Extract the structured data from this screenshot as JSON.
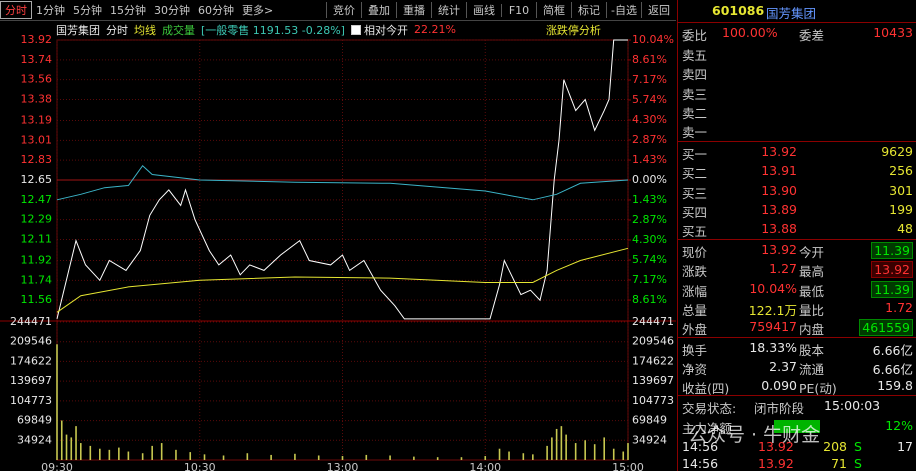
{
  "toolbar": {
    "tabs": [
      "分时",
      "1分钟",
      "5分钟",
      "15分钟",
      "30分钟",
      "60分钟",
      "更多>"
    ],
    "buttons": [
      "竞价",
      "叠加",
      "重播",
      "统计",
      "画线",
      "F10",
      "简框",
      "标记",
      "-自选",
      "返回"
    ]
  },
  "stock": {
    "code": "601086",
    "name": "国芳集团"
  },
  "chart_header": {
    "name": "国芳集团",
    "period": "分时",
    "ma": "均线",
    "volume": "成交量",
    "index": "[一般零售 1191.53 -0.28%]",
    "relative_label": "相对今开",
    "relative_value": "22.21%",
    "limit_analysis": "涨跌停分析"
  },
  "chart_data": [
    {
      "type": "line",
      "series": [
        {
          "color": "#ffffff",
          "x": [
            0,
            8,
            12,
            18,
            22,
            29,
            35,
            39,
            43,
            47,
            52,
            54,
            58,
            64,
            68,
            73,
            77,
            81,
            87,
            94,
            102,
            106,
            115,
            120,
            123,
            129,
            136,
            142,
            146,
            182,
            186,
            188,
            195,
            199,
            203,
            206,
            209,
            211,
            213,
            218,
            222,
            226,
            230,
            232,
            234,
            239,
            240
          ],
          "values": [
            11.39,
            12.1,
            11.88,
            11.74,
            11.92,
            11.83,
            12.01,
            12.33,
            12.47,
            12.56,
            12.42,
            12.56,
            12.29,
            12.01,
            11.88,
            11.97,
            11.79,
            11.88,
            11.83,
            11.97,
            12.1,
            11.92,
            11.88,
            11.97,
            11.83,
            11.92,
            11.65,
            11.51,
            11.39,
            11.39,
            11.7,
            11.92,
            11.61,
            11.65,
            11.56,
            11.83,
            12.65,
            13.01,
            13.56,
            13.28,
            13.38,
            13.1,
            13.28,
            13.38,
            13.92,
            13.92,
            13.92
          ]
        },
        {
          "color": "#e6e632",
          "x": [
            0,
            10,
            30,
            60,
            100,
            140,
            180,
            200,
            210,
            220,
            240
          ],
          "values": [
            11.45,
            11.6,
            11.68,
            11.74,
            11.77,
            11.76,
            11.72,
            11.72,
            11.83,
            11.92,
            12.03
          ]
        },
        {
          "color": "#3cb4c8",
          "x": [
            0,
            10,
            20,
            30,
            36,
            40,
            60,
            100,
            140,
            180,
            200,
            210,
            220,
            240
          ],
          "values": [
            12.47,
            12.52,
            12.58,
            12.6,
            12.78,
            12.7,
            12.65,
            12.63,
            12.62,
            12.55,
            12.47,
            12.52,
            12.62,
            12.65
          ]
        }
      ],
      "xlim": [
        0,
        240
      ],
      "xticks": [
        {
          "value": 0,
          "label": "09:30"
        },
        {
          "value": 60,
          "label": "10:30"
        },
        {
          "value": 120,
          "label": "13:00"
        },
        {
          "value": 180,
          "label": "14:00"
        },
        {
          "value": 240,
          "label": "15:00"
        }
      ],
      "ylim": [
        11.38,
        13.92
      ],
      "yticks": [
        13.92,
        13.74,
        13.56,
        13.38,
        13.19,
        13.01,
        12.83,
        12.65,
        12.47,
        12.29,
        12.11,
        11.92,
        11.74,
        11.56
      ],
      "y2lim": [
        -10.04,
        10.04
      ],
      "y2ticks": [
        {
          "value": 10.04,
          "label": "10.04%"
        },
        {
          "value": 8.61,
          "label": "8.61%"
        },
        {
          "value": 7.17,
          "label": "7.17%"
        },
        {
          "value": 5.74,
          "label": "5.74%"
        },
        {
          "value": 4.3,
          "label": "4.30%"
        },
        {
          "value": 2.87,
          "label": "2.87%"
        },
        {
          "value": 1.43,
          "label": "1.43%"
        },
        {
          "value": 0,
          "label": "0.00%"
        },
        {
          "value": -1.43,
          "label": "1.43%"
        },
        {
          "value": -2.87,
          "label": "2.87%"
        },
        {
          "value": -4.3,
          "label": "4.30%"
        },
        {
          "value": -5.74,
          "label": "5.74%"
        },
        {
          "value": -7.17,
          "label": "7.17%"
        },
        {
          "value": -8.61,
          "label": "8.61%"
        }
      ],
      "grid": true
    },
    {
      "type": "bar",
      "color": "#c8c850",
      "x": [
        0,
        2,
        4,
        6,
        8,
        10,
        14,
        18,
        22,
        26,
        30,
        36,
        40,
        44,
        50,
        56,
        62,
        70,
        80,
        90,
        100,
        110,
        120,
        130,
        140,
        150,
        160,
        170,
        180,
        186,
        190,
        196,
        200,
        206,
        208,
        210,
        212,
        214,
        218,
        222,
        226,
        230,
        234,
        238,
        240
      ],
      "values": [
        205000,
        70000,
        45000,
        40000,
        60000,
        30000,
        25000,
        20000,
        18000,
        22000,
        15000,
        12000,
        25000,
        30000,
        18000,
        14000,
        10000,
        8000,
        12000,
        9000,
        11000,
        8000,
        7000,
        9000,
        8000,
        6000,
        5000,
        5000,
        7000,
        20000,
        15000,
        12000,
        10000,
        25000,
        40000,
        55000,
        60000,
        45000,
        30000,
        35000,
        28000,
        40000,
        20000,
        15000,
        30000
      ],
      "xlim": [
        0,
        240
      ],
      "ylim": [
        0,
        244471
      ],
      "yticks": [
        244471,
        209546,
        174622,
        139697,
        104773,
        69849,
        34924
      ],
      "grid": true
    }
  ],
  "order_book": {
    "ratio_label": "委比",
    "ratio": "100.00%",
    "diff_label": "委差",
    "diff": "10433",
    "sells": [
      "卖五",
      "卖四",
      "卖三",
      "卖二",
      "卖一"
    ],
    "buys": [
      {
        "label": "买一",
        "price": "13.92",
        "volume": "9629"
      },
      {
        "label": "买二",
        "price": "13.91",
        "volume": "256"
      },
      {
        "label": "买三",
        "price": "13.90",
        "volume": "301"
      },
      {
        "label": "买四",
        "price": "13.89",
        "volume": "199"
      },
      {
        "label": "买五",
        "price": "13.88",
        "volume": "48"
      }
    ]
  },
  "quote": [
    [
      {
        "label": "现价",
        "value": "13.92"
      },
      {
        "label": "今开",
        "value": "11.39"
      }
    ],
    [
      {
        "label": "涨跌",
        "value": "1.27"
      },
      {
        "label": "最高",
        "value": "13.92"
      }
    ],
    [
      {
        "label": "涨幅",
        "value": "10.04%"
      },
      {
        "label": "最低",
        "value": "11.39"
      }
    ],
    [
      {
        "label": "总量",
        "value": "122.1万"
      },
      {
        "label": "量比",
        "value": "1.72"
      }
    ],
    [
      {
        "label": "外盘",
        "value": "759417"
      },
      {
        "label": "内盘",
        "value": "461559"
      }
    ],
    [
      {
        "label": "换手",
        "value": "18.33%"
      },
      {
        "label": "股本",
        "value": "6.66亿"
      }
    ],
    [
      {
        "label": "净资",
        "value": "2.37"
      },
      {
        "label": "流通",
        "value": "6.66亿"
      }
    ],
    [
      {
        "label": "收益(四)",
        "value": "0.090"
      },
      {
        "label": "PE(动)",
        "value": "159.8"
      }
    ]
  ],
  "status": {
    "label": "交易状态:",
    "value": "闭市阶段",
    "time": "15:00:03"
  },
  "main_force": {
    "label": "主力净额",
    "value": "12%"
  },
  "trades": [
    {
      "time": "14:56",
      "price": "13.92",
      "volume": "208",
      "side": "S",
      "count": "17"
    },
    {
      "time": "14:56",
      "price": "13.92",
      "volume": "71",
      "side": "S"
    }
  ],
  "watermark": "公众号 · 牛财金"
}
